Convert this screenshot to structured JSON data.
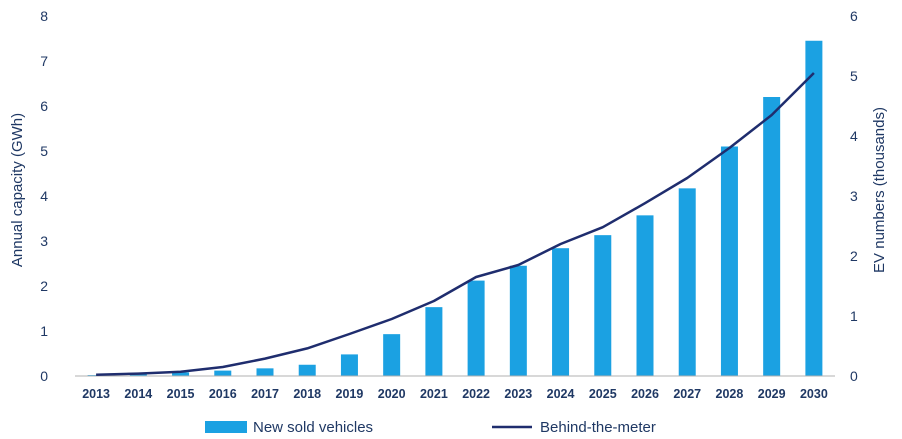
{
  "chart_data": {
    "type": "bar",
    "categories": [
      "2013",
      "2014",
      "2015",
      "2016",
      "2017",
      "2018",
      "2019",
      "2020",
      "2021",
      "2022",
      "2023",
      "2024",
      "2025",
      "2026",
      "2027",
      "2028",
      "2029",
      "2030"
    ],
    "series": [
      {
        "name": "New sold vehicles",
        "type": "bar",
        "axis": "left",
        "color": "#1ba1e2",
        "values": [
          0.02,
          0.05,
          0.08,
          0.12,
          0.17,
          0.25,
          0.48,
          0.93,
          1.53,
          2.12,
          2.45,
          2.84,
          3.13,
          3.57,
          4.17,
          5.1,
          6.2,
          7.45
        ]
      },
      {
        "name": "Behind-the-meter",
        "type": "line",
        "axis": "right",
        "color": "#1f2d6e",
        "values": [
          0.02,
          0.04,
          0.07,
          0.15,
          0.29,
          0.46,
          0.7,
          0.95,
          1.25,
          1.65,
          1.85,
          2.2,
          2.48,
          2.88,
          3.3,
          3.8,
          4.35,
          5.05
        ]
      }
    ],
    "ylabel_left": "Annual capacity (GWh)",
    "ylabel_right": "EV numbers (thousands)",
    "ylim_left": [
      0,
      8
    ],
    "ylim_right": [
      0,
      6
    ],
    "yticks_left": [
      "0",
      "1",
      "2",
      "3",
      "4",
      "5",
      "6",
      "7",
      "8"
    ],
    "yticks_right": [
      "0",
      "1",
      "2",
      "3",
      "4",
      "5",
      "6"
    ],
    "grid": false,
    "legend_position": "bottom"
  }
}
